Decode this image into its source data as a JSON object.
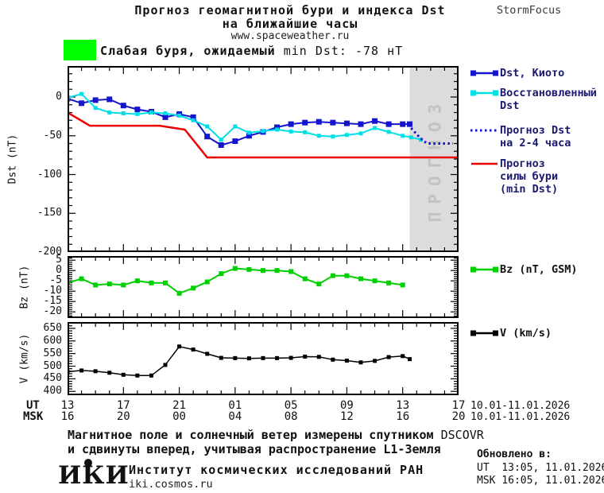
{
  "header": {
    "title_line1": "Прогноз геомагнитной бури и индекса Dst",
    "title_line2": "на ближайшие часы",
    "site": "www.spaceweather.ru",
    "brand": "StormFocus"
  },
  "alert": {
    "swatch_color": "#00ff00",
    "text_bold": "Слабая буря, ожидаемый ",
    "text_rest": "min Dst: -78 нТ"
  },
  "forecast_band": {
    "label": "ПРОГНОЗ",
    "start_hour_offset": 24.5,
    "fill": "#dcdcdc",
    "label_color": "#c2c2c2"
  },
  "xaxis": {
    "ut_label": "UT",
    "msk_label": "MSK",
    "ut_ticks": [
      "13",
      "17",
      "21",
      "01",
      "05",
      "09",
      "13",
      "17"
    ],
    "msk_ticks": [
      "16",
      "20",
      "00",
      "04",
      "08",
      "12",
      "16",
      "20"
    ],
    "ut_date": "10.01-11.01.2026",
    "msk_date": "10.01-11.01.2026",
    "hours_span": 28,
    "major_every": 4
  },
  "chart_data": [
    {
      "type": "line",
      "name": "dst",
      "ylabel": "Dst (nT)",
      "ylim": [
        -200,
        40
      ],
      "yticks": [
        0,
        -50,
        -100,
        -150,
        -200
      ],
      "ytick_minor": 10,
      "legend_text_color": "#191970",
      "series": [
        {
          "name": "Dst, Киото",
          "color": "#1515cd",
          "marker": 7,
          "width": 2,
          "x": [
            0,
            1,
            2,
            3,
            4,
            5,
            6,
            7,
            8,
            9,
            10,
            11,
            12,
            13,
            14,
            15,
            16,
            17,
            18,
            19,
            20,
            21,
            22,
            23,
            24,
            24.5
          ],
          "y": [
            -2,
            -8,
            -4,
            -3,
            -11,
            -16,
            -19,
            -26,
            -22,
            -26,
            -51,
            -62,
            -57,
            -50,
            -45,
            -39,
            -35,
            -33,
            -32,
            -33,
            -34,
            -35,
            -31,
            -35,
            -35,
            -35
          ]
        },
        {
          "name": "Восстановленный Dst",
          "color": "#00dfe8",
          "marker": 5,
          "width": 2,
          "x": [
            0,
            1,
            2,
            3,
            4,
            5,
            6,
            7,
            8,
            9,
            10,
            11,
            12,
            13,
            14,
            15,
            16,
            17,
            18,
            19,
            20,
            21,
            22,
            23,
            24,
            24.6,
            25.3
          ],
          "y": [
            -1,
            4,
            -14,
            -20,
            -21,
            -22,
            -20,
            -21,
            -24,
            -30,
            -38,
            -55,
            -38,
            -46,
            -44,
            -42,
            -44.5,
            -45.5,
            -50,
            -51,
            -49,
            -47,
            -40,
            -45,
            -50,
            -52,
            -55
          ]
        },
        {
          "name": "Прогноз Dst на 2-4 часа",
          "color": "#1515cd",
          "dash": "2.5,3.5",
          "width": 3,
          "x": [
            24.6,
            24.9,
            25.2,
            25.5,
            25.8,
            26.1,
            26.4,
            26.7,
            27.0,
            27.3,
            27.6
          ],
          "y": [
            -40,
            -46,
            -52,
            -57,
            -60,
            -60,
            -60,
            -60,
            -60,
            -60,
            -60
          ]
        },
        {
          "name": "Прогноз силы бури (min Dst)",
          "color": "#ee0000",
          "width": 2.5,
          "x": [
            0,
            1.6,
            6.6,
            8.4,
            10,
            28
          ],
          "y": [
            -20,
            -37,
            -37,
            -42,
            -78,
            -78
          ]
        }
      ],
      "legend": [
        {
          "lines": [
            "Dst, Киото"
          ],
          "color": "#1515cd",
          "marker": true
        },
        {
          "lines": [
            "Восстановленный",
            "Dst"
          ],
          "color": "#00dfe8",
          "marker": true
        },
        {
          "lines": [
            "Прогноз Dst",
            "на 2-4 часа"
          ],
          "color": "#1515cd",
          "dotted": true
        },
        {
          "lines": [
            "Прогноз",
            "силы бури",
            "(min Dst)"
          ],
          "color": "#ee0000"
        }
      ]
    },
    {
      "type": "line",
      "name": "bz",
      "ylabel": "Bz (nT)",
      "ylim": [
        -23,
        7
      ],
      "yticks": [
        5,
        0,
        -5,
        -10,
        -15,
        -20
      ],
      "ytick_minor": 1,
      "legend_text_color": "#111111",
      "series": [
        {
          "name": "Bz (nT, GSM)",
          "color": "#00cf00",
          "marker": 6,
          "width": 2,
          "x": [
            0,
            1,
            2,
            3,
            4,
            5,
            6,
            7,
            8,
            9,
            10,
            11,
            12,
            13,
            14,
            15,
            16,
            17,
            18,
            19,
            20,
            21,
            22,
            23,
            24
          ],
          "y": [
            -6,
            -4,
            -7,
            -6.5,
            -7,
            -5,
            -6,
            -6,
            -11,
            -8.5,
            -5.5,
            -1.5,
            1,
            0.5,
            0,
            0,
            -0.5,
            -4,
            -6.5,
            -2.5,
            -2.5,
            -4,
            -5,
            -6,
            -7
          ]
        }
      ],
      "legend": [
        {
          "lines": [
            "Bz (nT, GSM)"
          ],
          "color": "#00cf00",
          "marker": true
        }
      ]
    },
    {
      "type": "line",
      "name": "v",
      "ylabel": "V (km/s)",
      "ylim": [
        385,
        675
      ],
      "yticks": [
        650,
        600,
        550,
        500,
        450,
        400
      ],
      "ytick_minor": 10,
      "legend_text_color": "#111111",
      "series": [
        {
          "name": "V (km/s)",
          "color": "#000000",
          "marker": 5,
          "width": 1.5,
          "x": [
            0,
            1,
            2,
            3,
            4,
            5,
            6,
            7,
            8,
            9,
            10,
            11,
            12,
            13,
            14,
            15,
            16,
            17,
            18,
            19,
            20,
            21,
            22,
            23,
            24,
            24.5
          ],
          "y": [
            478,
            483,
            480,
            474,
            466,
            463,
            463,
            505,
            578,
            566,
            549,
            533,
            532,
            531,
            532,
            532,
            533,
            538,
            537,
            526,
            522,
            515,
            521,
            536,
            540,
            528
          ]
        }
      ],
      "legend": [
        {
          "lines": [
            "V (km/s)"
          ],
          "color": "#000000",
          "marker": true
        }
      ]
    }
  ],
  "footer": {
    "note1_bold": "Магнитное поле и солнечный ветер измерены спутником ",
    "note1_reg": "DSCOVR",
    "note2_bold": "и сдвинуты вперед, учитывая распространение L1-Земля",
    "logo": "ИКИ",
    "institute": "Институт космических исследований РАН",
    "site": "iki.cosmos.ru",
    "updated_label": "Обновлено в:",
    "updated_ut": "UT  13:05, 11.01.2026",
    "updated_msk": "MSK 16:05, 11.01.2026"
  }
}
